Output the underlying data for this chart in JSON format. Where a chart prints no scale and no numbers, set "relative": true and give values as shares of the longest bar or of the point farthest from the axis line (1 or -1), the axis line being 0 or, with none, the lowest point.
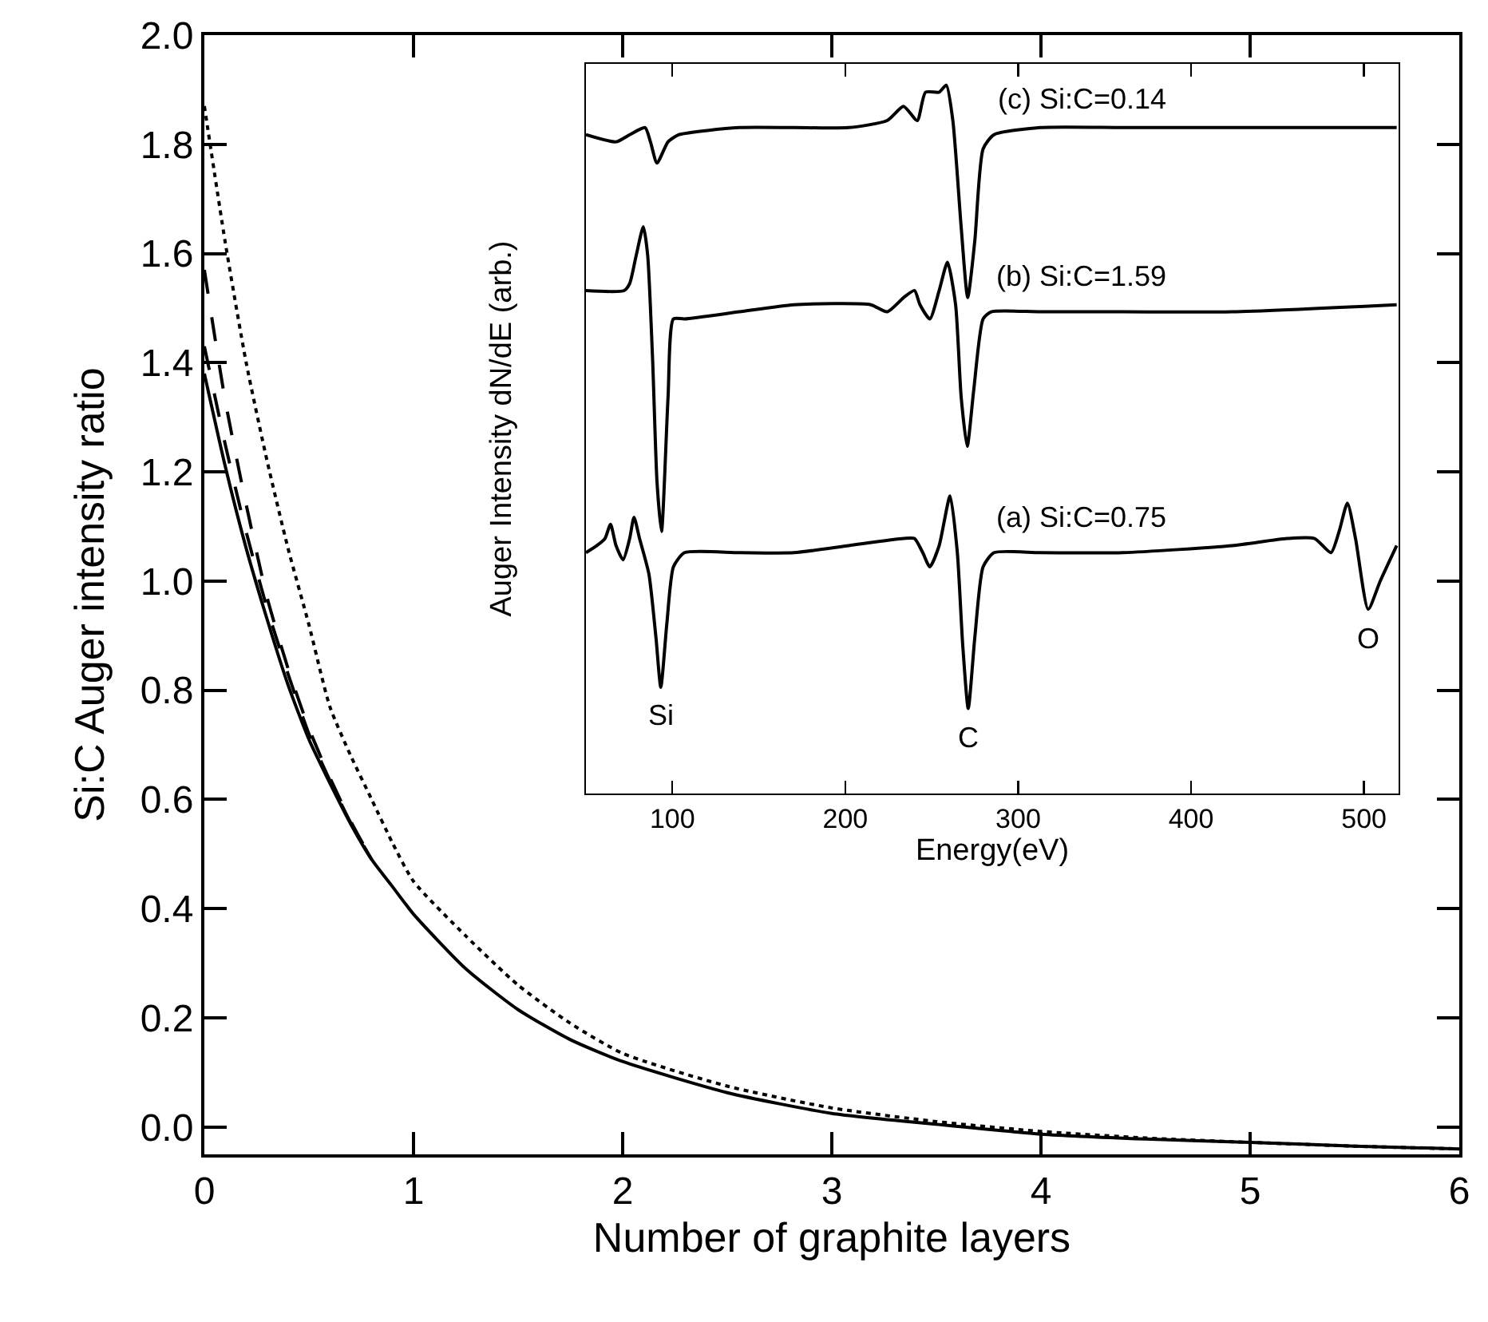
{
  "chart_data": [
    {
      "type": "line",
      "xlabel": "Number of graphite layers",
      "ylabel": "Si:C Auger intensity ratio",
      "xlim": [
        0,
        6
      ],
      "xticks": [
        0,
        1,
        2,
        3,
        4,
        5,
        6
      ],
      "ylim": [
        -0.05,
        2.0
      ],
      "yticks": [
        {
          "value": 0,
          "label": "0.0"
        },
        {
          "value": 0.2,
          "label": "0.2"
        },
        {
          "value": 0.4,
          "label": "0.4"
        },
        {
          "value": 0.6,
          "label": "0.6"
        },
        {
          "value": 0.8,
          "label": "0.8"
        },
        {
          "value": 1.0,
          "label": "1.0"
        },
        {
          "value": 1.2,
          "label": "1.2"
        },
        {
          "value": 1.4,
          "label": "1.4"
        },
        {
          "value": 1.6,
          "label": "1.6"
        },
        {
          "value": 1.8,
          "label": "1.8"
        },
        {
          "value": 2.0,
          "label": "2.0"
        }
      ],
      "grid": false,
      "marker": "none",
      "series": [
        {
          "color": "#000000",
          "line_style": "solid",
          "x": [
            0,
            0.1,
            0.2,
            0.3,
            0.4,
            0.5,
            0.6,
            0.7,
            0.8,
            0.9,
            1,
            1.25,
            1.5,
            1.75,
            2,
            2.5,
            3,
            3.5,
            4,
            4.5,
            5,
            5.5,
            6
          ],
          "values": [
            1.38,
            1.21,
            1.06,
            0.93,
            0.81,
            0.71,
            0.63,
            0.555,
            0.49,
            0.44,
            0.39,
            0.29,
            0.215,
            0.16,
            0.12,
            0.063,
            0.025,
            0.005,
            -0.013,
            -0.022,
            -0.028,
            -0.035,
            -0.04
          ]
        },
        {
          "color": "#000000",
          "line_style": "dashed",
          "x": [
            0,
            0.1,
            0.2,
            0.3,
            0.4,
            0.5,
            0.6,
            0.7,
            0.8
          ],
          "values": [
            1.57,
            1.33,
            1.14,
            0.97,
            0.84,
            0.73,
            0.64,
            0.56,
            0.49
          ]
        },
        {
          "color": "#000000",
          "line_style": "dashed",
          "x": [
            0,
            0.1,
            0.2,
            0.3,
            0.4,
            0.5,
            0.6,
            0.7,
            0.8
          ],
          "values": [
            1.43,
            1.25,
            1.09,
            0.95,
            0.83,
            0.72,
            0.635,
            0.557,
            0.49
          ]
        },
        {
          "color": "#000000",
          "line_style": "dotted",
          "x": [
            0,
            0.1,
            0.2,
            0.3,
            0.4,
            0.5,
            0.6,
            0.7,
            0.8,
            0.9,
            1,
            1.25,
            1.5,
            1.75,
            2,
            2.5,
            3,
            3.5,
            4,
            4.5,
            5,
            5.5,
            6
          ],
          "values": [
            1.87,
            1.62,
            1.4,
            1.22,
            1.06,
            0.92,
            0.77,
            0.68,
            0.6,
            0.52,
            0.45,
            0.35,
            0.26,
            0.19,
            0.135,
            0.075,
            0.035,
            0.01,
            -0.008,
            -0.02,
            -0.028,
            -0.035,
            -0.04
          ]
        }
      ]
    },
    {
      "type": "line",
      "relative": true,
      "xlabel": "Energy(eV)",
      "ylabel": "Auger Intensity dN/dE (arb.)",
      "xlim": [
        50,
        520
      ],
      "xticks": [
        100,
        200,
        300,
        400,
        500
      ],
      "grid": false,
      "marker": "none",
      "line_style": "solid",
      "series": [
        {
          "name": "(c) Si:C=0.14",
          "color": "#000000",
          "x": [
            50,
            67.4,
            75.3,
            84.2,
            87.3,
            91.1,
            97.5,
            103.8,
            138.7,
            170.3,
            202,
            224.2,
            233.7,
            241.6,
            246.4,
            254.3,
            258.4,
            262.2,
            267,
            270.8,
            274.9,
            279.7,
            286,
            312.9,
            360.5,
            423.8,
            518.9
          ],
          "values": [
            0.93,
            0.92,
            0.93,
            0.94,
            0.92,
            0.89,
            0.92,
            0.93,
            0.94,
            0.94,
            0.94,
            0.95,
            0.97,
            0.95,
            0.99,
            0.99,
            1.0,
            0.95,
            0.8,
            0.7,
            0.78,
            0.91,
            0.93,
            0.94,
            0.94,
            0.94,
            0.94
          ]
        },
        {
          "name": "(b) Si:C=1.59",
          "color": "#000000",
          "x": [
            50,
            72.1,
            75.3,
            79.1,
            83.2,
            85.7,
            88.6,
            91.1,
            93.7,
            97.5,
            100.6,
            107,
            138.7,
            170.3,
            214.7,
            224.2,
            233.7,
            240,
            243.2,
            248.9,
            254.3,
            259.1,
            263.8,
            267,
            270.5,
            274.3,
            279.7,
            284.4,
            312.9,
            360.5,
            423.8,
            518.9
          ],
          "values": [
            0.71,
            0.71,
            0.72,
            0.76,
            0.8,
            0.76,
            0.61,
            0.44,
            0.37,
            0.56,
            0.67,
            0.67,
            0.68,
            0.69,
            0.69,
            0.68,
            0.7,
            0.71,
            0.69,
            0.67,
            0.71,
            0.75,
            0.69,
            0.56,
            0.49,
            0.57,
            0.67,
            0.68,
            0.68,
            0.68,
            0.68,
            0.69
          ]
        },
        {
          "name": "(a) Si:C=0.75",
          "color": "#000000",
          "x": [
            50,
            56.3,
            61,
            64.2,
            67.4,
            71.5,
            75.3,
            77.8,
            81,
            86.4,
            90.5,
            93.3,
            96.8,
            100.6,
            107,
            138.7,
            170.3,
            202,
            233.7,
            240,
            244.8,
            248.9,
            254.3,
            260.6,
            264.8,
            267.9,
            271.1,
            274.9,
            279.7,
            286,
            312.9,
            360.5,
            423.8,
            455.5,
            471.4,
            480.9,
            485.6,
            490.4,
            495.1,
            502.4,
            509.4,
            518.9
          ],
          "values": [
            0.34,
            0.35,
            0.36,
            0.38,
            0.35,
            0.33,
            0.36,
            0.39,
            0.36,
            0.31,
            0.22,
            0.15,
            0.24,
            0.32,
            0.34,
            0.34,
            0.34,
            0.35,
            0.36,
            0.36,
            0.34,
            0.32,
            0.35,
            0.42,
            0.34,
            0.21,
            0.12,
            0.22,
            0.32,
            0.34,
            0.34,
            0.34,
            0.35,
            0.36,
            0.36,
            0.34,
            0.37,
            0.41,
            0.36,
            0.26,
            0.3,
            0.35
          ]
        }
      ],
      "annotations": [
        {
          "text": "Si",
          "x": 93.3,
          "y": 0.15
        },
        {
          "text": "C",
          "x": 271.1,
          "y": 0.12
        },
        {
          "text": "O",
          "x": 502.4,
          "y": 0.26
        }
      ]
    }
  ]
}
